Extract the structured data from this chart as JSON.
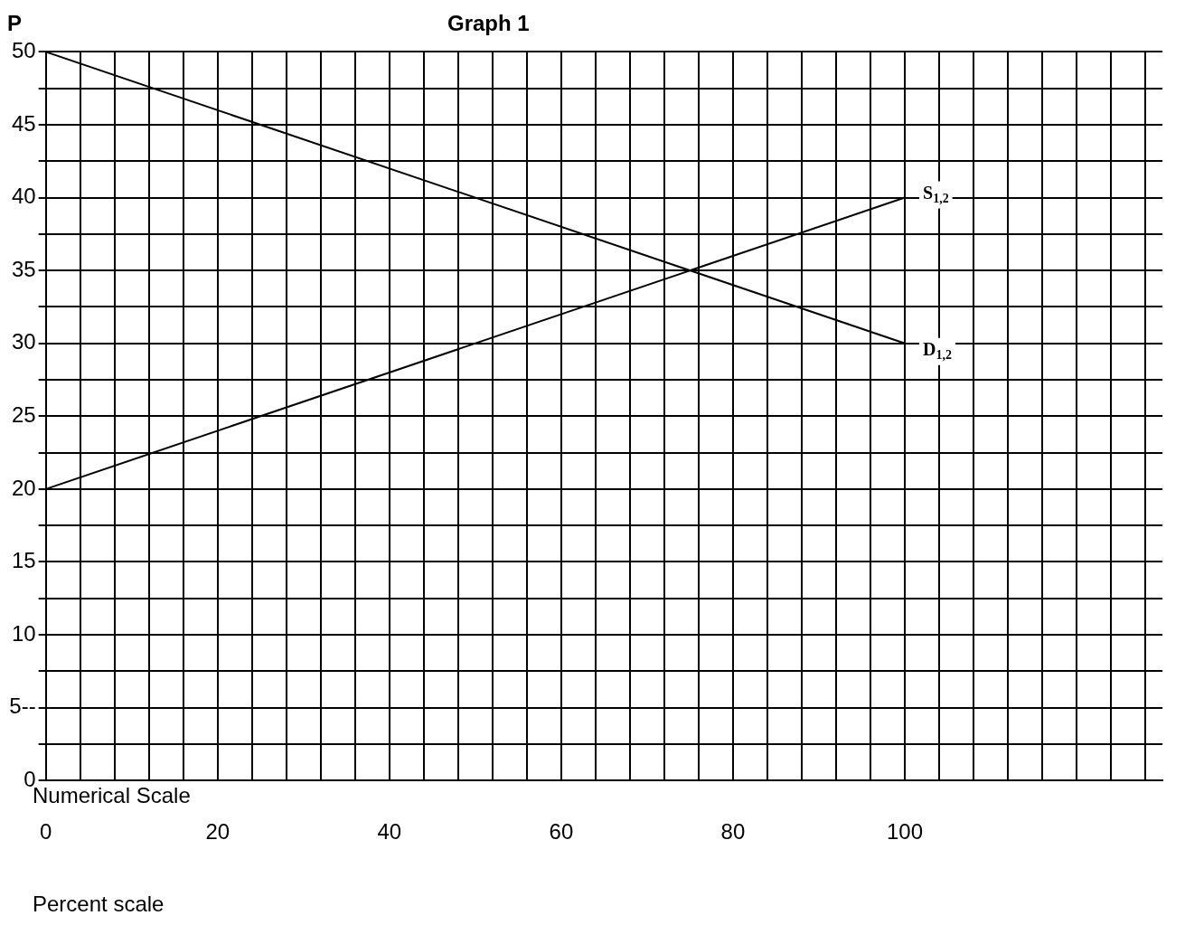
{
  "chart_data": {
    "type": "line",
    "title": "Graph 1",
    "ylabel": "P",
    "xlabel": "Numerical Scale",
    "annotations": [
      "Percent scale"
    ],
    "x": [
      0,
      100
    ],
    "series": [
      {
        "name": "S$_{1,2}$",
        "color": "#000000",
        "values": [
          20,
          40
        ]
      },
      {
        "name": "D$_{1,2}$",
        "color": "#000000",
        "values": [
          50,
          30
        ]
      }
    ],
    "xlim": [
      0,
      130
    ],
    "xticks": [
      0,
      {
        "value": 4,
        "label": null
      },
      {
        "value": 8,
        "label": null
      },
      {
        "value": 12,
        "label": null
      },
      {
        "value": 16,
        "label": null
      },
      20,
      {
        "value": 24,
        "label": null
      },
      {
        "value": 28,
        "label": null
      },
      {
        "value": 32,
        "label": null
      },
      {
        "value": 36,
        "label": null
      },
      40,
      {
        "value": 44,
        "label": null
      },
      {
        "value": 48,
        "label": null
      },
      {
        "value": 52,
        "label": null
      },
      {
        "value": 56,
        "label": null
      },
      60,
      {
        "value": 64,
        "label": null
      },
      {
        "value": 68,
        "label": null
      },
      {
        "value": 72,
        "label": null
      },
      {
        "value": 76,
        "label": null
      },
      80,
      {
        "value": 84,
        "label": null
      },
      {
        "value": 88,
        "label": null
      },
      {
        "value": 92,
        "label": null
      },
      {
        "value": 96,
        "label": null
      },
      100,
      {
        "value": 104,
        "label": null
      },
      {
        "value": 108,
        "label": null
      },
      {
        "value": 112,
        "label": null
      },
      {
        "value": 116,
        "label": null
      },
      {
        "value": 120,
        "label": null
      },
      {
        "value": 124,
        "label": null
      },
      {
        "value": 128,
        "label": null
      }
    ],
    "ylim": [
      0,
      50
    ],
    "yticks": [
      0,
      {
        "value": 2.5,
        "label": null
      },
      {
        "value": 5,
        "label": "5--"
      },
      {
        "value": 7.5,
        "label": null
      },
      10,
      {
        "value": 12.5,
        "label": null
      },
      15,
      {
        "value": 17.5,
        "label": null
      },
      20,
      {
        "value": 22.5,
        "label": null
      },
      25,
      {
        "value": 27.5,
        "label": null
      },
      30,
      {
        "value": 32.5,
        "label": null
      },
      35,
      {
        "value": 37.5,
        "label": null
      },
      40,
      {
        "value": 42.5,
        "label": null
      },
      45,
      {
        "value": 47.5,
        "label": null
      },
      50
    ],
    "grid": true,
    "legend": false,
    "marker": "none",
    "line_style": "solid"
  }
}
